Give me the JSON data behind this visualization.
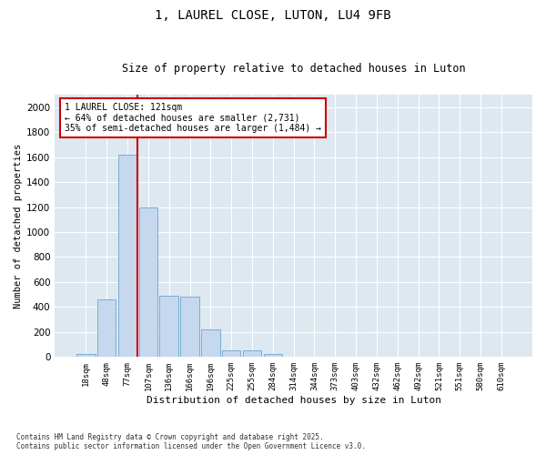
{
  "title_line1": "1, LAUREL CLOSE, LUTON, LU4 9FB",
  "title_line2": "Size of property relative to detached houses in Luton",
  "xlabel": "Distribution of detached houses by size in Luton",
  "ylabel": "Number of detached properties",
  "categories": [
    "18sqm",
    "48sqm",
    "77sqm",
    "107sqm",
    "136sqm",
    "166sqm",
    "196sqm",
    "225sqm",
    "255sqm",
    "284sqm",
    "314sqm",
    "344sqm",
    "373sqm",
    "403sqm",
    "432sqm",
    "462sqm",
    "492sqm",
    "521sqm",
    "551sqm",
    "580sqm",
    "610sqm"
  ],
  "values": [
    25,
    460,
    1620,
    1200,
    490,
    480,
    220,
    55,
    55,
    25,
    0,
    0,
    0,
    0,
    0,
    0,
    0,
    0,
    0,
    0,
    0
  ],
  "bar_color": "#c5d8ee",
  "bar_edge_color": "#7aadd4",
  "vline_x_idx": 2.5,
  "vline_color": "#cc0000",
  "annotation_title": "1 LAUREL CLOSE: 121sqm",
  "annotation_line1": "← 64% of detached houses are smaller (2,731)",
  "annotation_line2": "35% of semi-detached houses are larger (1,484) →",
  "annotation_box_color": "#cc0000",
  "ylim": [
    0,
    2100
  ],
  "yticks": [
    0,
    200,
    400,
    600,
    800,
    1000,
    1200,
    1400,
    1600,
    1800,
    2000
  ],
  "background_color": "#dde8f0",
  "footer1": "Contains HM Land Registry data © Crown copyright and database right 2025.",
  "footer2": "Contains public sector information licensed under the Open Government Licence v3.0."
}
